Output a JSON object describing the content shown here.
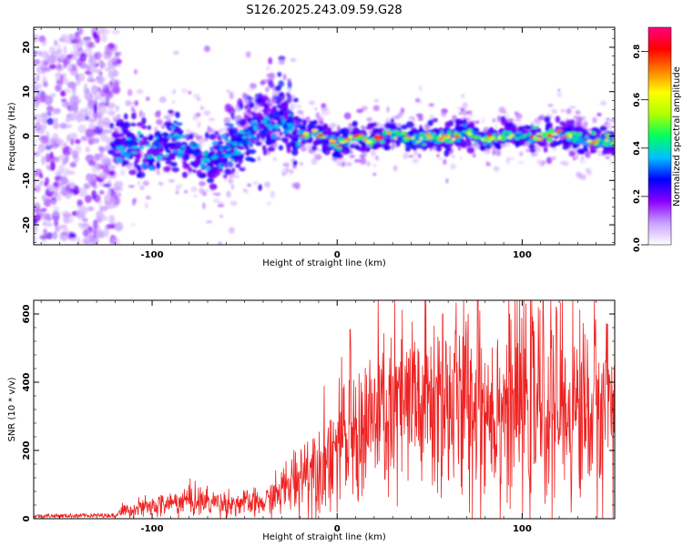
{
  "title": "S126.2025.243.09.59.G28",
  "chart_data": [
    {
      "type": "heatmap",
      "title": "S126.2025.243.09.59.G28",
      "xlabel": "Height of straight line (km)",
      "ylabel": "Frequency (Hz)",
      "xlim": [
        -164,
        150
      ],
      "ylim": [
        -24.5,
        24.5
      ],
      "xticks": [
        -100,
        0,
        100
      ],
      "yticks": [
        -20,
        -10,
        0,
        10,
        20
      ],
      "colorbar": {
        "label": "Normalized spectral amplitude",
        "range": [
          0,
          0.9
        ],
        "ticks": [
          0.0,
          0.2,
          0.4,
          0.6,
          0.8
        ],
        "colors": [
          "#ffffff",
          "#c8a0ff",
          "#8a00ff",
          "#0000ff",
          "#00c0ff",
          "#00ff60",
          "#b0ff00",
          "#ffff00",
          "#ff8000",
          "#ff0000",
          "#ff0080"
        ]
      },
      "ridge": {
        "description": "peak frequency track vs height",
        "points": [
          [
            -120,
            -2.0
          ],
          [
            -110,
            -3.0
          ],
          [
            -100,
            -4.0
          ],
          [
            -90,
            -1.0
          ],
          [
            -80,
            -3.0
          ],
          [
            -70,
            -5.5
          ],
          [
            -60,
            -4.0
          ],
          [
            -50,
            -1.5
          ],
          [
            -40,
            2.5
          ],
          [
            -30,
            3.0
          ],
          [
            -20,
            0.5
          ],
          [
            -10,
            0.5
          ],
          [
            0,
            -2.0
          ],
          [
            10,
            0.0
          ],
          [
            20,
            -1.0
          ],
          [
            30,
            0.5
          ],
          [
            40,
            -1.0
          ],
          [
            50,
            0.0
          ],
          [
            60,
            -0.5
          ],
          [
            70,
            1.0
          ],
          [
            80,
            -1.0
          ],
          [
            90,
            0.0
          ],
          [
            100,
            0.0
          ],
          [
            110,
            -0.5
          ],
          [
            120,
            1.0
          ],
          [
            130,
            -0.5
          ],
          [
            140,
            -1.5
          ],
          [
            150,
            -1.0
          ]
        ]
      }
    },
    {
      "type": "line",
      "xlabel": "Height of straight line (km)",
      "ylabel": "SNR (10 * v/v)",
      "xlim": [
        -164,
        150
      ],
      "ylim": [
        0,
        640
      ],
      "xticks": [
        -100,
        0,
        100
      ],
      "yticks": [
        0,
        200,
        400,
        600
      ],
      "series": [
        {
          "name": "SNR",
          "color": "#ee2222",
          "envelope": {
            "description": "mean SNR level along height",
            "x": [
              -164,
              -120,
              -115,
              -100,
              -80,
              -60,
              -40,
              -30,
              -20,
              -15,
              -10,
              0,
              10,
              20,
              40,
              60,
              80,
              100,
              120,
              150
            ],
            "y": [
              8,
              10,
              25,
              35,
              55,
              45,
              45,
              80,
              130,
              150,
              160,
              210,
              240,
              290,
              330,
              340,
              330,
              340,
              330,
              320
            ]
          },
          "annotated_peaks": [
            {
              "x": 76,
              "y": 640
            },
            {
              "x": 57,
              "y": 600
            },
            {
              "x": 146,
              "y": 570
            },
            {
              "x": 7,
              "y": 555
            }
          ]
        }
      ]
    }
  ]
}
